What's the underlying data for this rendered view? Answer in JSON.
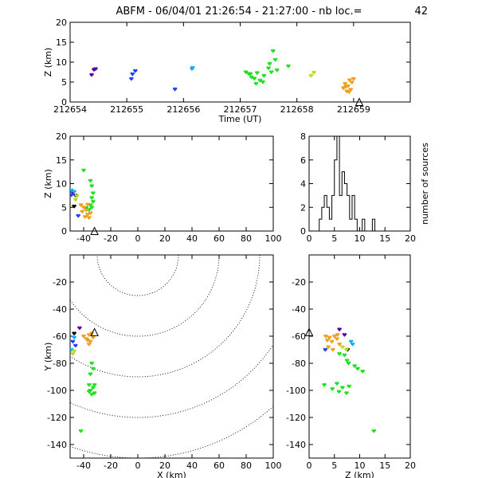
{
  "header": {
    "title": "ABFM - 06/04/01 21:26:54 - 21:27:00 - nb loc.=",
    "count": "42"
  },
  "colors": {
    "violet": "#5a00a0",
    "blue": "#2040ff",
    "cyan": "#10b0f0",
    "green": "#20e020",
    "yellowgreen": "#b0e020",
    "orange": "#f0a020",
    "black": "#000000"
  },
  "chart_data": [
    {
      "type": "scatter",
      "panel": "time-altitude",
      "xlabel": "Time (UT)",
      "ylabel": "Z (km)",
      "xlim": [
        212654,
        212660
      ],
      "ylim": [
        0,
        20
      ],
      "xticks": [
        "212654",
        "212655",
        "212656",
        "212657",
        "212658",
        "212659"
      ],
      "yticks": [
        "0",
        "5",
        "10",
        "15",
        "20"
      ],
      "station_marker": {
        "x": 212659.1,
        "y": 0
      },
      "points": [
        {
          "x": 212654.38,
          "y": 6.8,
          "c": "violet"
        },
        {
          "x": 212654.45,
          "y": 8.3,
          "c": "violet"
        },
        {
          "x": 212654.42,
          "y": 8.1,
          "c": "violet"
        },
        {
          "x": 212655.15,
          "y": 7.8,
          "c": "blue"
        },
        {
          "x": 212655.08,
          "y": 5.8,
          "c": "blue"
        },
        {
          "x": 212655.1,
          "y": 7.0,
          "c": "blue"
        },
        {
          "x": 212655.85,
          "y": 3.2,
          "c": "blue"
        },
        {
          "x": 212656.15,
          "y": 8.3,
          "c": "cyan"
        },
        {
          "x": 212656.16,
          "y": 8.6,
          "c": "cyan"
        },
        {
          "x": 212657.1,
          "y": 7.5,
          "c": "green"
        },
        {
          "x": 212657.15,
          "y": 7.1,
          "c": "green"
        },
        {
          "x": 212657.2,
          "y": 6.2,
          "c": "green"
        },
        {
          "x": 212657.25,
          "y": 5.9,
          "c": "green"
        },
        {
          "x": 212657.3,
          "y": 7.3,
          "c": "green"
        },
        {
          "x": 212657.35,
          "y": 5.4,
          "c": "green"
        },
        {
          "x": 212657.4,
          "y": 5.0,
          "c": "green"
        },
        {
          "x": 212657.42,
          "y": 6.6,
          "c": "green"
        },
        {
          "x": 212657.28,
          "y": 4.6,
          "c": "green"
        },
        {
          "x": 212657.5,
          "y": 8.5,
          "c": "green"
        },
        {
          "x": 212657.52,
          "y": 9.6,
          "c": "green"
        },
        {
          "x": 212657.55,
          "y": 7.5,
          "c": "green"
        },
        {
          "x": 212657.58,
          "y": 12.8,
          "c": "green"
        },
        {
          "x": 212657.62,
          "y": 10.6,
          "c": "green"
        },
        {
          "x": 212657.65,
          "y": 8.0,
          "c": "green"
        },
        {
          "x": 212657.85,
          "y": 9.0,
          "c": "green"
        },
        {
          "x": 212657.18,
          "y": 7.0,
          "c": "green"
        },
        {
          "x": 212658.25,
          "y": 6.6,
          "c": "yellowgreen"
        },
        {
          "x": 212658.3,
          "y": 7.4,
          "c": "yellowgreen"
        },
        {
          "x": 212658.82,
          "y": 3.5,
          "c": "orange"
        },
        {
          "x": 212658.85,
          "y": 4.6,
          "c": "orange"
        },
        {
          "x": 212658.88,
          "y": 2.7,
          "c": "orange"
        },
        {
          "x": 212658.9,
          "y": 4.0,
          "c": "orange"
        },
        {
          "x": 212658.93,
          "y": 5.5,
          "c": "orange"
        },
        {
          "x": 212658.95,
          "y": 3.1,
          "c": "orange"
        },
        {
          "x": 212658.97,
          "y": 4.9,
          "c": "orange"
        },
        {
          "x": 212659.0,
          "y": 5.8,
          "c": "orange"
        },
        {
          "x": 212658.86,
          "y": 3.8,
          "c": "orange"
        },
        {
          "x": 212658.92,
          "y": 2.5,
          "c": "orange"
        }
      ]
    },
    {
      "type": "scatter",
      "panel": "x-altitude",
      "xlabel": "",
      "ylabel": "Z (km)",
      "xlim": [
        -50,
        100
      ],
      "ylim": [
        0,
        20
      ],
      "xticks": [
        "-40",
        "-20",
        "0",
        "20",
        "40",
        "60",
        "80",
        "100"
      ],
      "yticks": [
        "0",
        "5",
        "10",
        "15",
        "20"
      ],
      "station_marker": {
        "x": -32,
        "y": 0
      },
      "points": [
        {
          "x": -48,
          "y": 8.1,
          "c": "violet"
        },
        {
          "x": -46,
          "y": 7.5,
          "c": "violet"
        },
        {
          "x": -49,
          "y": 7.6,
          "c": "blue"
        },
        {
          "x": -44,
          "y": 3.2,
          "c": "blue"
        },
        {
          "x": -47,
          "y": 8.3,
          "c": "cyan"
        },
        {
          "x": -49,
          "y": 8.6,
          "c": "cyan"
        },
        {
          "x": -40,
          "y": 12.8,
          "c": "green"
        },
        {
          "x": -35,
          "y": 10.6,
          "c": "green"
        },
        {
          "x": -34,
          "y": 9.5,
          "c": "green"
        },
        {
          "x": -33,
          "y": 8.0,
          "c": "green"
        },
        {
          "x": -34,
          "y": 7.0,
          "c": "green"
        },
        {
          "x": -33,
          "y": 6.2,
          "c": "green"
        },
        {
          "x": -35,
          "y": 5.5,
          "c": "green"
        },
        {
          "x": -38,
          "y": 4.9,
          "c": "green"
        },
        {
          "x": -36,
          "y": 4.5,
          "c": "green"
        },
        {
          "x": -34,
          "y": 5.0,
          "c": "green"
        },
        {
          "x": -45,
          "y": 7.4,
          "c": "yellowgreen"
        },
        {
          "x": -46,
          "y": 6.6,
          "c": "yellowgreen"
        },
        {
          "x": -42,
          "y": 5.5,
          "c": "orange"
        },
        {
          "x": -40,
          "y": 5.0,
          "c": "orange"
        },
        {
          "x": -38,
          "y": 4.4,
          "c": "orange"
        },
        {
          "x": -37,
          "y": 3.5,
          "c": "orange"
        },
        {
          "x": -36,
          "y": 2.8,
          "c": "orange"
        },
        {
          "x": -35,
          "y": 3.8,
          "c": "orange"
        },
        {
          "x": -39,
          "y": 3.0,
          "c": "orange"
        },
        {
          "x": -41,
          "y": 4.1,
          "c": "orange"
        },
        {
          "x": -37,
          "y": 5.6,
          "c": "orange"
        },
        {
          "x": -47,
          "y": 5.2,
          "c": "black"
        }
      ]
    },
    {
      "type": "bar",
      "panel": "altitude-histogram",
      "xlabel": "",
      "ylabel": "number of sources",
      "xlim": [
        0,
        20
      ],
      "ylim": [
        0,
        8
      ],
      "xticks": [
        "0",
        "5",
        "10",
        "15",
        "20"
      ],
      "yticks": [
        "0",
        "2",
        "4",
        "6",
        "8"
      ],
      "bin_width": 0.5,
      "bins": [
        {
          "x": 2.0,
          "y": 1
        },
        {
          "x": 2.5,
          "y": 2
        },
        {
          "x": 3.0,
          "y": 3
        },
        {
          "x": 3.5,
          "y": 2
        },
        {
          "x": 4.0,
          "y": 1
        },
        {
          "x": 4.5,
          "y": 3
        },
        {
          "x": 5.0,
          "y": 6
        },
        {
          "x": 5.5,
          "y": 8
        },
        {
          "x": 6.0,
          "y": 3
        },
        {
          "x": 6.5,
          "y": 5
        },
        {
          "x": 7.0,
          "y": 4
        },
        {
          "x": 7.5,
          "y": 3
        },
        {
          "x": 8.0,
          "y": 1
        },
        {
          "x": 8.5,
          "y": 3
        },
        {
          "x": 9.0,
          "y": 1
        },
        {
          "x": 10.5,
          "y": 1
        },
        {
          "x": 12.5,
          "y": 1
        }
      ]
    },
    {
      "type": "scatter",
      "panel": "plan-view",
      "xlabel": "X (km)",
      "ylabel": "Y (km)",
      "xlim": [
        -50,
        100
      ],
      "ylim": [
        -150,
        0
      ],
      "xticks": [
        "-40",
        "-20",
        "0",
        "20",
        "40",
        "60",
        "80",
        "100"
      ],
      "yticks": [
        "-140",
        "-120",
        "-100",
        "-80",
        "-60",
        "-40",
        "-20"
      ],
      "station_marker": {
        "x": -32,
        "y": -57
      },
      "range_rings_km": [
        30,
        60,
        90,
        120,
        150
      ],
      "ring_center": {
        "x": 0,
        "y": 0
      },
      "points": [
        {
          "x": -43,
          "y": -54,
          "c": "violet"
        },
        {
          "x": -48,
          "y": -64,
          "c": "blue"
        },
        {
          "x": -46,
          "y": -67,
          "c": "blue"
        },
        {
          "x": -49,
          "y": -70,
          "c": "cyan"
        },
        {
          "x": -47,
          "y": -61,
          "c": "cyan"
        },
        {
          "x": -47,
          "y": -58,
          "c": "black"
        },
        {
          "x": -47,
          "y": -71,
          "c": "yellowgreen"
        },
        {
          "x": -48,
          "y": -73,
          "c": "yellowgreen"
        },
        {
          "x": -40,
          "y": -60,
          "c": "orange"
        },
        {
          "x": -38,
          "y": -62,
          "c": "orange"
        },
        {
          "x": -36,
          "y": -59,
          "c": "orange"
        },
        {
          "x": -35,
          "y": -64,
          "c": "orange"
        },
        {
          "x": -34,
          "y": -58,
          "c": "orange"
        },
        {
          "x": -33,
          "y": -61,
          "c": "orange"
        },
        {
          "x": -37,
          "y": -63,
          "c": "orange"
        },
        {
          "x": -36,
          "y": -66,
          "c": "orange"
        },
        {
          "x": -34,
          "y": -80,
          "c": "green"
        },
        {
          "x": -33,
          "y": -84,
          "c": "green"
        },
        {
          "x": -35,
          "y": -88,
          "c": "green"
        },
        {
          "x": -36,
          "y": -96,
          "c": "green"
        },
        {
          "x": -35,
          "y": -100,
          "c": "green"
        },
        {
          "x": -33,
          "y": -98,
          "c": "green"
        },
        {
          "x": -32,
          "y": -102,
          "c": "green"
        },
        {
          "x": -34,
          "y": -103,
          "c": "green"
        },
        {
          "x": -36,
          "y": -101,
          "c": "green"
        },
        {
          "x": -32,
          "y": -96,
          "c": "green"
        },
        {
          "x": -42,
          "y": -130,
          "c": "green"
        }
      ]
    },
    {
      "type": "scatter",
      "panel": "z-y-view",
      "xlabel": "Z (km)",
      "ylabel": "",
      "xlim": [
        0,
        20
      ],
      "ylim": [
        -150,
        0
      ],
      "xticks": [
        "0",
        "5",
        "10",
        "15",
        "20"
      ],
      "yticks": [
        "-140",
        "-120",
        "-100",
        "-80",
        "-60",
        "-40",
        "-20"
      ],
      "station_marker": {
        "x": 0,
        "y": -57
      },
      "points": [
        {
          "x": 3.3,
          "y": -60,
          "c": "orange"
        },
        {
          "x": 3.6,
          "y": -63,
          "c": "orange"
        },
        {
          "x": 4.0,
          "y": -61,
          "c": "orange"
        },
        {
          "x": 4.5,
          "y": -64,
          "c": "orange"
        },
        {
          "x": 5.0,
          "y": -60,
          "c": "orange"
        },
        {
          "x": 5.5,
          "y": -62,
          "c": "orange"
        },
        {
          "x": 6.0,
          "y": -66,
          "c": "orange"
        },
        {
          "x": 3.8,
          "y": -68,
          "c": "orange"
        },
        {
          "x": 4.7,
          "y": -70,
          "c": "orange"
        },
        {
          "x": 5.6,
          "y": -59,
          "c": "orange"
        },
        {
          "x": 6.0,
          "y": -55,
          "c": "violet"
        },
        {
          "x": 7.0,
          "y": -59,
          "c": "violet"
        },
        {
          "x": 3.2,
          "y": -70,
          "c": "blue"
        },
        {
          "x": 8.3,
          "y": -64,
          "c": "cyan"
        },
        {
          "x": 8.6,
          "y": -66,
          "c": "cyan"
        },
        {
          "x": 7.6,
          "y": -70,
          "c": "black"
        },
        {
          "x": 6.6,
          "y": -68,
          "c": "yellowgreen"
        },
        {
          "x": 7.4,
          "y": -70,
          "c": "yellowgreen"
        },
        {
          "x": 6.0,
          "y": -73,
          "c": "green"
        },
        {
          "x": 7.0,
          "y": -74,
          "c": "green"
        },
        {
          "x": 7.8,
          "y": -80,
          "c": "green"
        },
        {
          "x": 9.0,
          "y": -82,
          "c": "green"
        },
        {
          "x": 9.6,
          "y": -84,
          "c": "green"
        },
        {
          "x": 10.6,
          "y": -86,
          "c": "green"
        },
        {
          "x": 7.5,
          "y": -78,
          "c": "green"
        },
        {
          "x": 5.5,
          "y": -95,
          "c": "green"
        },
        {
          "x": 4.6,
          "y": -99,
          "c": "green"
        },
        {
          "x": 5.9,
          "y": -101,
          "c": "green"
        },
        {
          "x": 6.6,
          "y": -98,
          "c": "green"
        },
        {
          "x": 7.4,
          "y": -102,
          "c": "green"
        },
        {
          "x": 7.9,
          "y": -97,
          "c": "green"
        },
        {
          "x": 3.0,
          "y": -96,
          "c": "green"
        },
        {
          "x": 12.8,
          "y": -130,
          "c": "green"
        }
      ]
    }
  ]
}
